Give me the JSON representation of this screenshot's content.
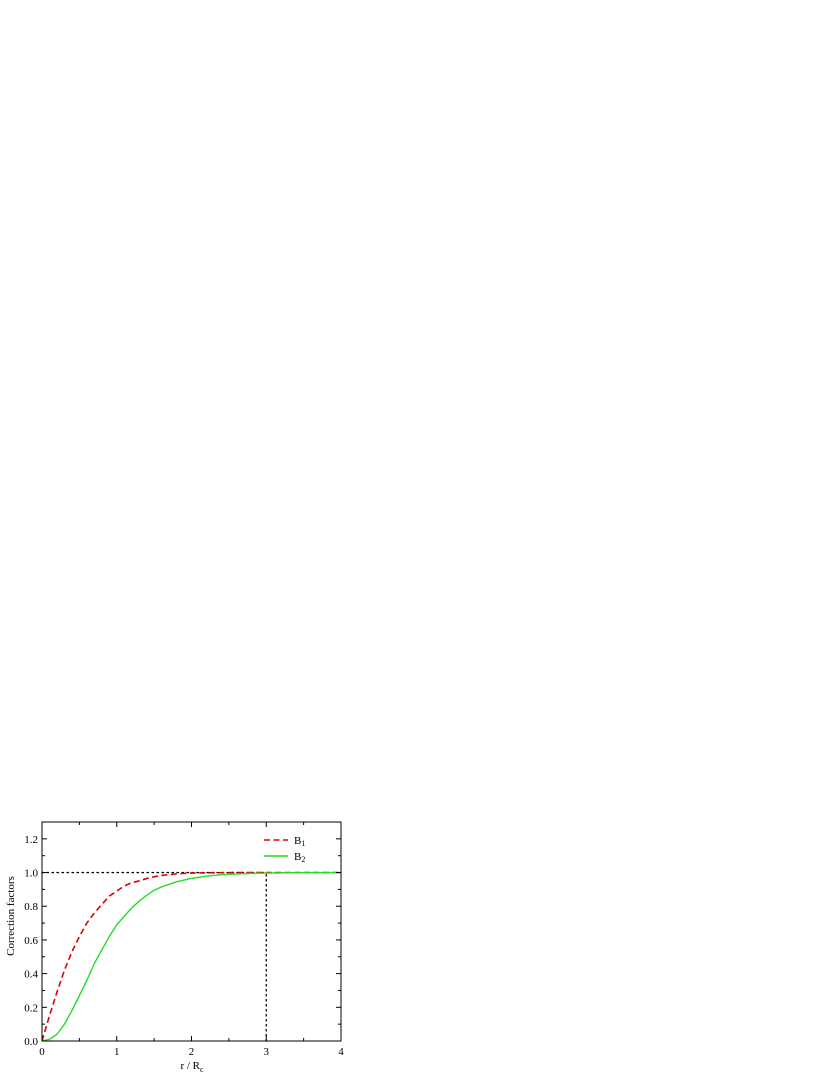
{
  "chart_data": {
    "type": "line",
    "title": "",
    "xlabel": "r / R",
    "xlabel_subscript": "c",
    "ylabel": "Correction factors",
    "xlim": [
      0,
      4
    ],
    "ylim": [
      0,
      1.3
    ],
    "x_ticks": [
      0,
      1,
      2,
      3,
      4
    ],
    "x_tick_labels": [
      "0",
      "1",
      "2",
      "3",
      "4"
    ],
    "y_ticks": [
      0,
      0.2,
      0.4,
      0.6,
      0.8,
      1.0,
      1.2
    ],
    "y_tick_labels": [
      "0.0",
      "0.2",
      "0.4",
      "0.6",
      "0.8",
      "1.0",
      "1.2"
    ],
    "grid": false,
    "legend_position": "top-right",
    "reference_lines": [
      {
        "orientation": "horizontal",
        "value": 1.0,
        "x_range": [
          0,
          3
        ],
        "style": "dotted",
        "color": "#000000"
      },
      {
        "orientation": "vertical",
        "value": 3.0,
        "y_range": [
          0,
          1.0
        ],
        "style": "dotted",
        "color": "#000000"
      }
    ],
    "x": [
      0,
      0.1,
      0.2,
      0.3,
      0.4,
      0.5,
      0.6,
      0.7,
      0.8,
      0.9,
      1.0,
      1.1,
      1.2,
      1.3,
      1.4,
      1.5,
      1.6,
      1.7,
      1.8,
      1.9,
      2.0,
      2.2,
      2.4,
      2.6,
      2.8,
      3.0,
      3.2,
      3.4,
      3.6,
      3.8,
      4.0
    ],
    "series": [
      {
        "name": "B",
        "name_subscript": "1",
        "color": "#e00000",
        "style": "dashed",
        "values": [
          0.0,
          0.15,
          0.29,
          0.42,
          0.53,
          0.62,
          0.7,
          0.76,
          0.81,
          0.86,
          0.89,
          0.92,
          0.94,
          0.95,
          0.965,
          0.975,
          0.983,
          0.988,
          0.992,
          0.995,
          0.997,
          0.998,
          0.999,
          1.0,
          1.0,
          1.0,
          1.0,
          1.0,
          1.0,
          1.0,
          1.0
        ]
      },
      {
        "name": "B",
        "name_subscript": "2",
        "color": "#22dd22",
        "style": "solid",
        "values": [
          0.0,
          0.01,
          0.04,
          0.1,
          0.18,
          0.27,
          0.36,
          0.46,
          0.54,
          0.62,
          0.69,
          0.74,
          0.79,
          0.83,
          0.865,
          0.895,
          0.915,
          0.93,
          0.945,
          0.955,
          0.965,
          0.978,
          0.987,
          0.992,
          0.995,
          0.997,
          0.998,
          0.999,
          1.0,
          1.0,
          1.0
        ]
      }
    ]
  }
}
